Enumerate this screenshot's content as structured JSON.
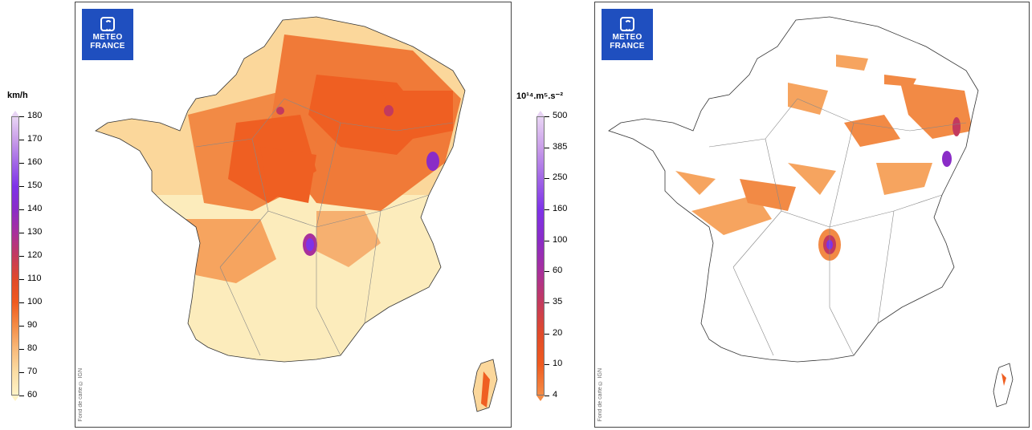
{
  "logo": {
    "line1": "METEO",
    "line2": "FRANCE"
  },
  "map_credit": "Fond de carte © IGN",
  "wind_scale": {
    "unit": "km/h",
    "ticks": [
      "180",
      "170",
      "160",
      "150",
      "140",
      "130",
      "120",
      "110",
      "100",
      "90",
      "80",
      "70",
      "60"
    ],
    "colors": [
      "#e8d4f4",
      "#c99de9",
      "#a166e6",
      "#7e33e8",
      "#8a2cc7",
      "#a8309c",
      "#c33a5e",
      "#e04a2a",
      "#ef5a1f",
      "#f48b45",
      "#f8b879",
      "#fbdca3",
      "#fff3c6"
    ]
  },
  "energy_scale": {
    "unit": "10¹⁴.m⁵.s⁻²",
    "ticks": [
      "500",
      "385",
      "250",
      "160",
      "100",
      "60",
      "35",
      "20",
      "10",
      "4"
    ],
    "colors": [
      "#e8d4f4",
      "#c99de9",
      "#a166e6",
      "#7e33e8",
      "#8a2cc7",
      "#a8309c",
      "#c33a5e",
      "#e04a2a",
      "#ef5a1f",
      "#f48b45"
    ]
  }
}
